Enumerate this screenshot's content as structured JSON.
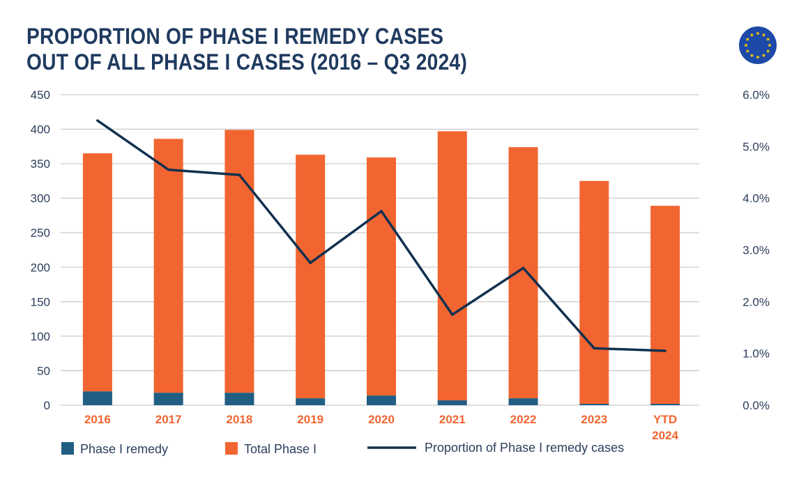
{
  "title_lines": [
    "PROPORTION OF PHASE I REMEDY CASES",
    "OUT OF ALL PHASE I CASES (2016 – Q3 2024)"
  ],
  "colors": {
    "title": "#1f3a5f",
    "remedy": "#215e83",
    "total": "#f26531",
    "line": "#10304f",
    "category": "#f26531",
    "grid": "#bdbdbd",
    "flag_blue": "#1d4aa8",
    "flag_star": "#ffcc00"
  },
  "logo": {
    "icon": "eu-flag-icon"
  },
  "chart_data": {
    "type": "bar",
    "categories": [
      [
        "2016"
      ],
      [
        "2017"
      ],
      [
        "2018"
      ],
      [
        "2019"
      ],
      [
        "2020"
      ],
      [
        "2021"
      ],
      [
        "2022"
      ],
      [
        "2023"
      ],
      [
        "YTD",
        "2024"
      ]
    ],
    "series": [
      {
        "name": "Phase I remedy",
        "type": "bar",
        "axis": "left",
        "stack": "base",
        "values": [
          20,
          18,
          18,
          10,
          14,
          7,
          10,
          2,
          2
        ]
      },
      {
        "name": "Total Phase I",
        "type": "bar",
        "axis": "left",
        "stack": "top",
        "values": [
          365,
          386,
          399,
          363,
          359,
          397,
          374,
          325,
          289
        ]
      },
      {
        "name": "Proportion of Phase I remedy cases",
        "type": "line",
        "axis": "right",
        "values": [
          5.5,
          4.55,
          4.45,
          2.75,
          3.75,
          1.75,
          2.65,
          1.1,
          1.05
        ]
      }
    ],
    "y_left": {
      "min": 0,
      "max": 450,
      "ticks": [
        "0",
        "50",
        "100",
        "150",
        "200",
        "250",
        "300",
        "350",
        "400",
        "450"
      ]
    },
    "y_right": {
      "min": 0,
      "max": 6,
      "ticks": [
        "0.0%",
        "1.0%",
        "2.0%",
        "3.0%",
        "4.0%",
        "5.0%",
        "6.0%"
      ]
    },
    "grid": true,
    "legend_position": "bottom"
  }
}
